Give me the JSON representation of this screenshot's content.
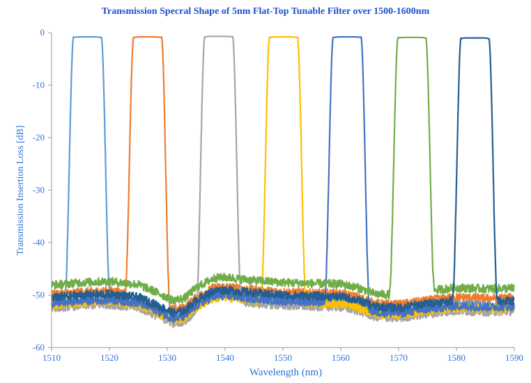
{
  "chart_data": {
    "type": "line",
    "title": "Transmission Specral Shape of 5nm Flat-Top Tunable Filter over 1500-1600nm",
    "xlabel": "Wavelength (nm)",
    "ylabel": "Transmission Insertion Loss [dB]",
    "xlim": [
      1510,
      1590
    ],
    "ylim": [
      -60,
      0
    ],
    "x_ticks": [
      1510,
      1520,
      1530,
      1540,
      1550,
      1560,
      1570,
      1580,
      1590
    ],
    "y_ticks": [
      0,
      -10,
      -20,
      -30,
      -40,
      -50,
      -60
    ],
    "x_tick_labels": [
      "1510",
      "1520",
      "1530",
      "1540",
      "1550",
      "1560",
      "1570",
      "1580",
      "1590"
    ],
    "y_tick_labels": [
      "0",
      "-10",
      "-20",
      "-30",
      "-40",
      "-50",
      "-60"
    ],
    "grid": false,
    "legend": "none",
    "floor_profile": {
      "wavelength": [
        1510,
        1515,
        1520,
        1525,
        1528,
        1531,
        1533,
        1535,
        1538,
        1540,
        1545,
        1550,
        1555,
        1560,
        1563,
        1566,
        1570,
        1575,
        1580,
        1585,
        1590
      ],
      "loss_db": [
        -51.3,
        -50.8,
        -50.6,
        -51.2,
        -52.6,
        -54.2,
        -53.8,
        -51.8,
        -50.0,
        -49.8,
        -50.4,
        -50.8,
        -51.0,
        -51.1,
        -51.8,
        -53.0,
        -53.2,
        -52.4,
        -51.8,
        -52.0,
        -51.9
      ]
    },
    "series": [
      {
        "color": "#5b9bd5",
        "center_nm": 1516.2,
        "peak_db": -0.8,
        "passband_nm": 4.8,
        "edge_nm": 1.5,
        "floor_offset_db": 0.2
      },
      {
        "color": "#ed7d31",
        "center_nm": 1526.6,
        "peak_db": -0.8,
        "passband_nm": 4.8,
        "edge_nm": 1.5,
        "floor_offset_db": 1.4
      },
      {
        "color": "#a5a5a5",
        "center_nm": 1538.9,
        "peak_db": -0.7,
        "passband_nm": 4.8,
        "edge_nm": 1.5,
        "floor_offset_db": -1.2
      },
      {
        "color": "#ffc000",
        "center_nm": 1550.1,
        "peak_db": -0.8,
        "passband_nm": 4.8,
        "edge_nm": 1.5,
        "floor_offset_db": -0.6
      },
      {
        "color": "#4472c4",
        "center_nm": 1561.1,
        "peak_db": -0.8,
        "passband_nm": 4.8,
        "edge_nm": 1.5,
        "floor_offset_db": -0.3
      },
      {
        "color": "#70ad47",
        "center_nm": 1572.3,
        "peak_db": -0.9,
        "passband_nm": 4.8,
        "edge_nm": 1.5,
        "floor_offset_db": 3.2
      },
      {
        "color": "#255e91",
        "center_nm": 1583.2,
        "peak_db": -1.0,
        "passband_nm": 4.8,
        "edge_nm": 1.5,
        "floor_offset_db": 0.8
      }
    ]
  }
}
